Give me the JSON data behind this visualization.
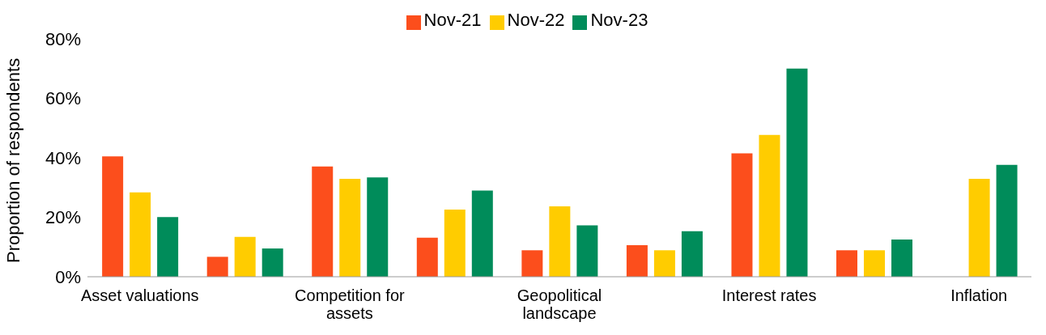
{
  "chart_data": {
    "type": "bar",
    "ylabel": "Proportion of respondents",
    "categories": [
      "Asset valuations",
      null,
      "Competition for assets",
      null,
      "Geopolitical landscape",
      null,
      "Interest rates",
      null,
      "Inflation"
    ],
    "series": [
      {
        "name": "Nov-21",
        "color": "#fc4e1c",
        "values": [
          40.5,
          6.7,
          37.1,
          13.1,
          8.9,
          10.6,
          41.5,
          8.9,
          null
        ]
      },
      {
        "name": "Nov-22",
        "color": "#ffcc00",
        "values": [
          28.4,
          13.4,
          32.9,
          22.6,
          23.7,
          8.9,
          47.7,
          8.9,
          32.9
        ]
      },
      {
        "name": "Nov-23",
        "color": "#008c5a",
        "values": [
          20.1,
          9.5,
          33.4,
          29.0,
          17.3,
          15.3,
          70.0,
          12.5,
          37.6
        ]
      }
    ],
    "ylim": [
      0,
      80
    ],
    "yticks": [
      {
        "value": 0,
        "label": "0%"
      },
      {
        "value": 20,
        "label": "20%"
      },
      {
        "value": 40,
        "label": "40%"
      },
      {
        "value": 60,
        "label": "60%"
      },
      {
        "value": 80,
        "label": "80%"
      }
    ],
    "grid": false,
    "legend": "top"
  }
}
